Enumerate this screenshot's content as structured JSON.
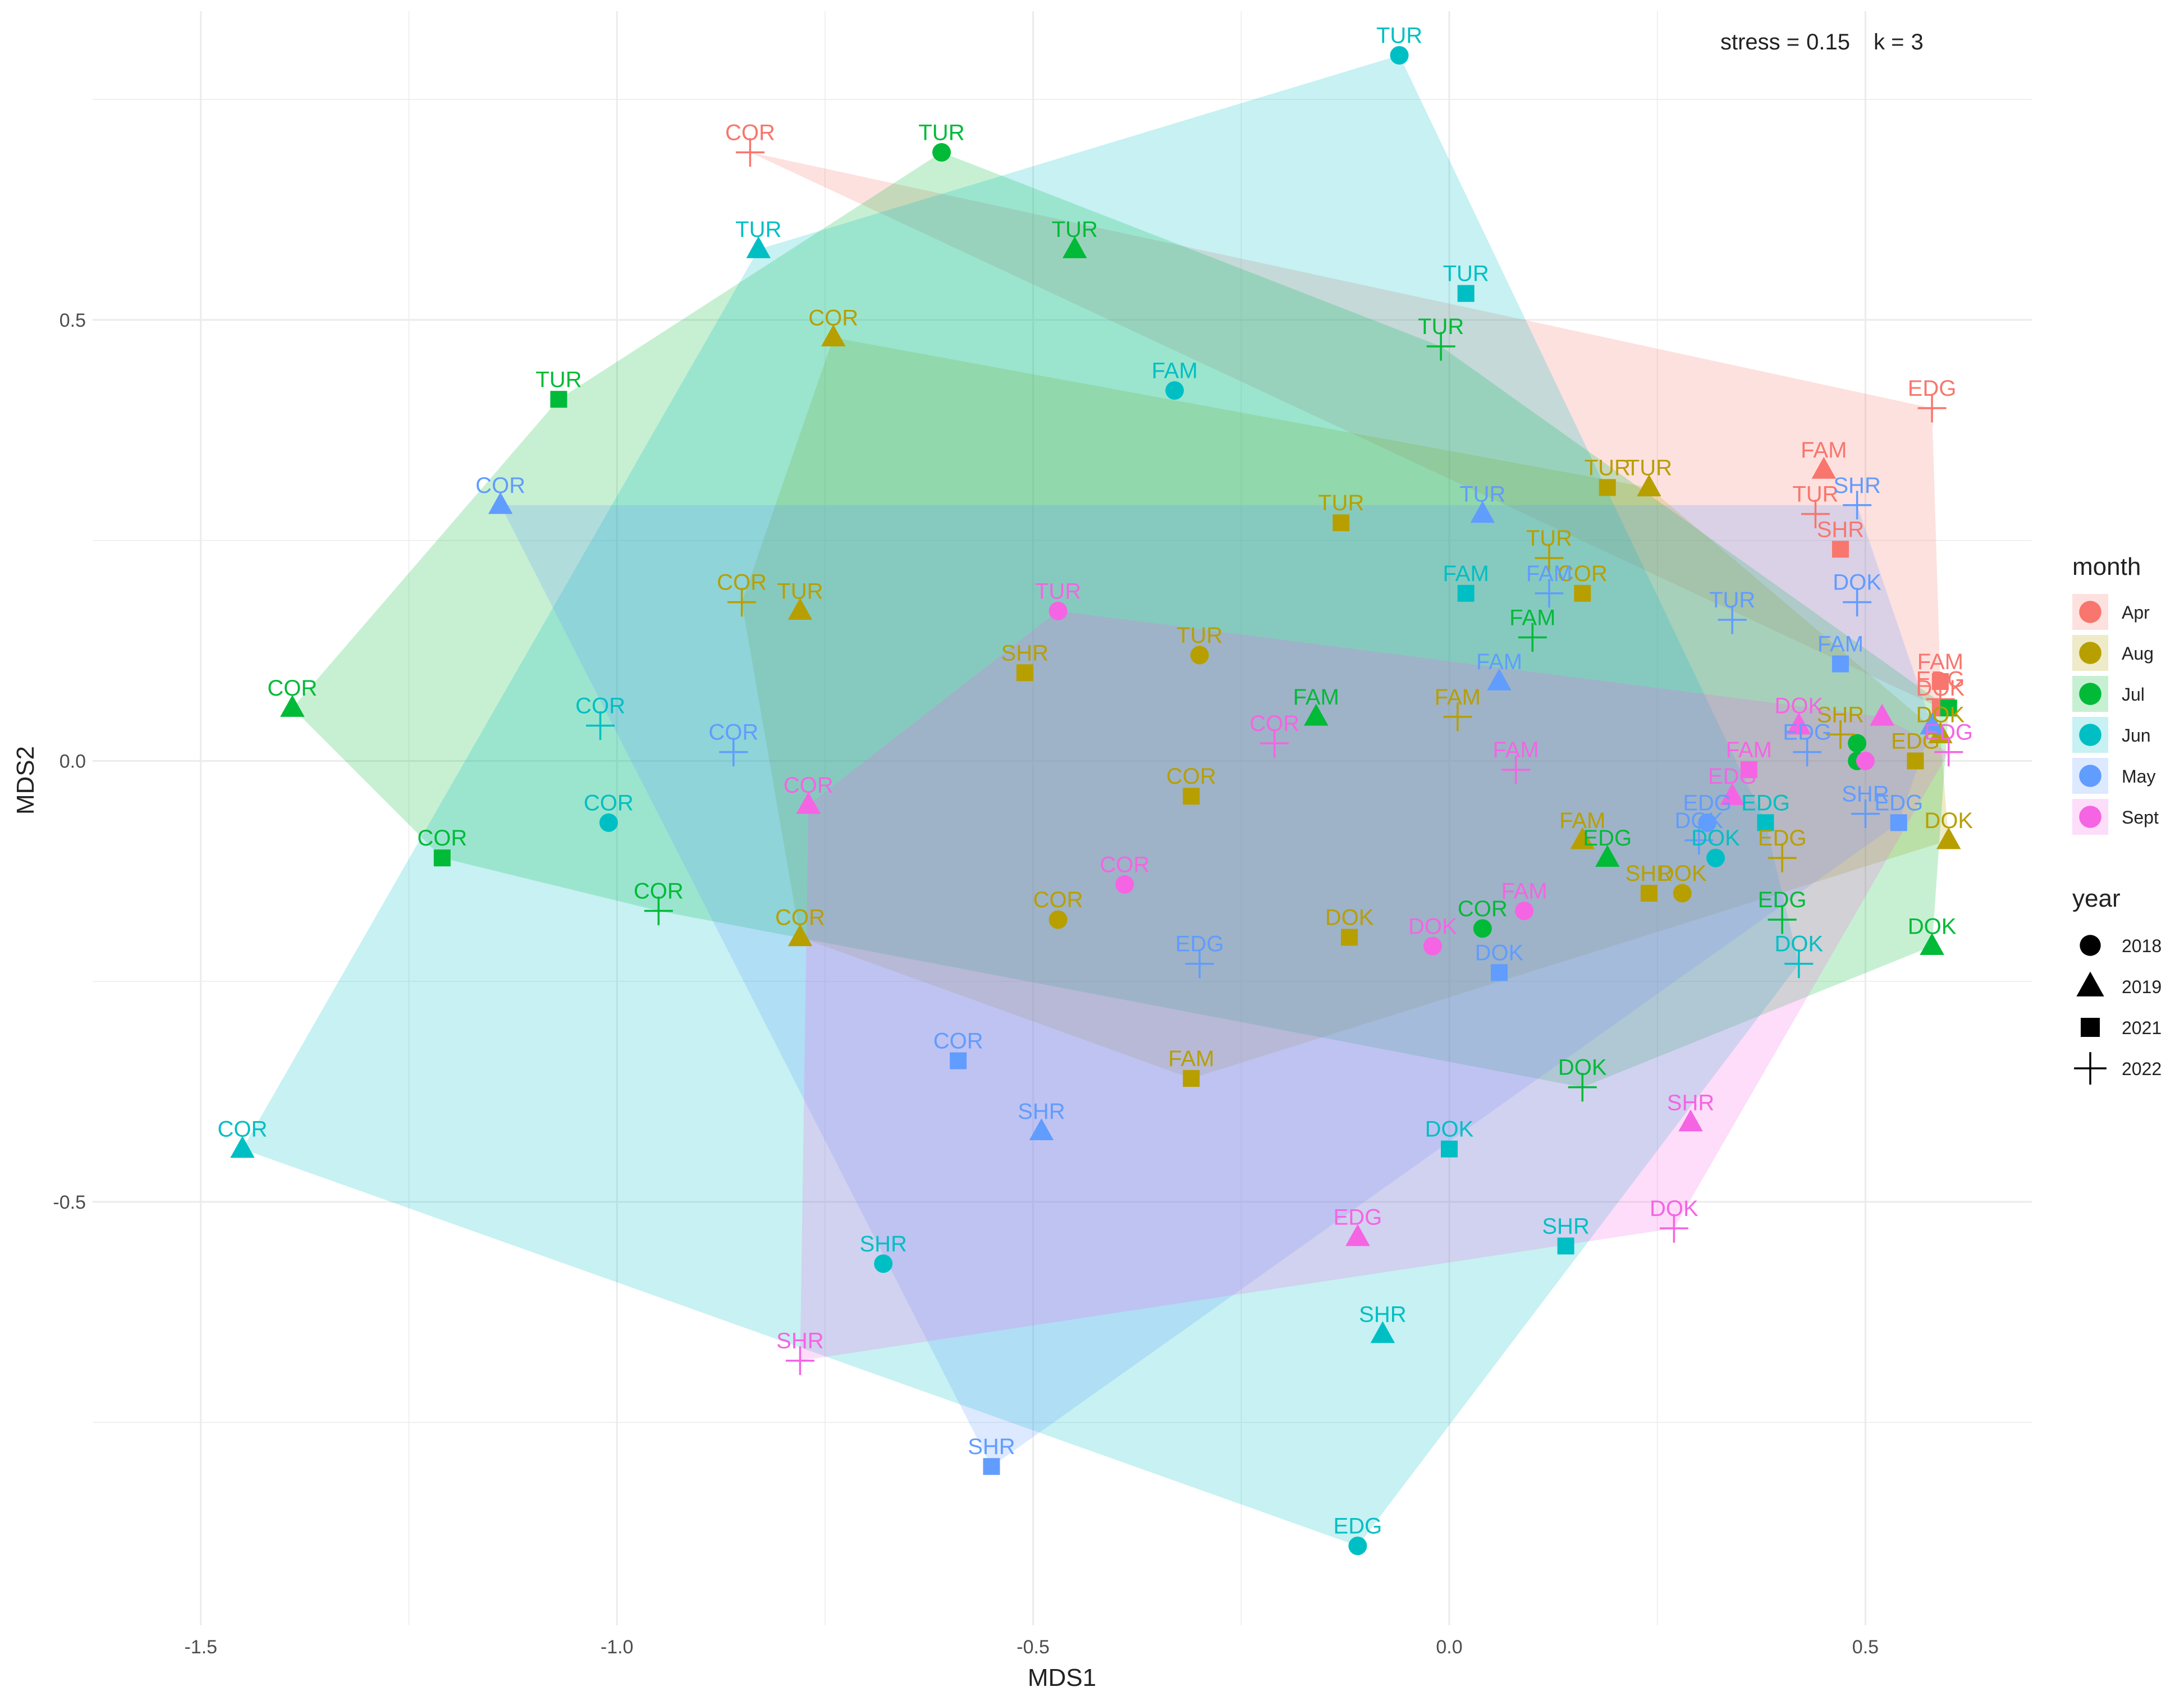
{
  "chart_data": {
    "type": "scatter",
    "annotation": {
      "stress_label": "stress =",
      "stress": "0.15",
      "k_label": "k =",
      "k": "3"
    },
    "xlabel": "MDS1",
    "ylabel": "MDS2",
    "xlim": [
      -1.63,
      0.7
    ],
    "ylim": [
      -0.98,
      0.85
    ],
    "x_ticks": [
      -1.5,
      -1.0,
      -0.5,
      0.0,
      0.5
    ],
    "x_tick_labels": [
      "-1.5",
      "-1.0",
      "-0.5",
      "0.0",
      "0.5"
    ],
    "y_ticks": [
      -0.5,
      0.0,
      0.5
    ],
    "y_tick_labels": [
      "-0.5",
      "0.0",
      "0.5"
    ],
    "grid": true,
    "legend_position": "right",
    "legend_month": {
      "title": "month",
      "entries": [
        {
          "label": "Apr",
          "color": "#F8766D"
        },
        {
          "label": "Aug",
          "color": "#B79F00"
        },
        {
          "label": "Jul",
          "color": "#00BA38"
        },
        {
          "label": "Jun",
          "color": "#00BFC4"
        },
        {
          "label": "May",
          "color": "#619CFF"
        },
        {
          "label": "Sept",
          "color": "#F564E3"
        }
      ]
    },
    "legend_year": {
      "title": "year",
      "entries": [
        {
          "label": "2018",
          "shape": "circle"
        },
        {
          "label": "2019",
          "shape": "triangle"
        },
        {
          "label": "2021",
          "shape": "square"
        },
        {
          "label": "2022",
          "shape": "plus"
        }
      ]
    },
    "points": [
      {
        "x": -0.84,
        "y": 0.69,
        "label": "COR",
        "month": "Apr",
        "year": "2022"
      },
      {
        "x": 0.45,
        "y": 0.33,
        "label": "FAM",
        "month": "Apr",
        "year": "2019"
      },
      {
        "x": 0.58,
        "y": 0.4,
        "label": "EDG",
        "month": "Apr",
        "year": "2022"
      },
      {
        "x": 0.44,
        "y": 0.28,
        "label": "TUR",
        "month": "Apr",
        "year": "2022"
      },
      {
        "x": 0.47,
        "y": 0.24,
        "label": "SHR",
        "month": "Apr",
        "year": "2021"
      },
      {
        "x": 0.59,
        "y": 0.09,
        "label": "FAM",
        "month": "Apr",
        "year": "2021"
      },
      {
        "x": 0.59,
        "y": 0.07,
        "label": "EDG",
        "month": "Apr",
        "year": "2022"
      },
      {
        "x": 0.59,
        "y": 0.06,
        "label": "DOK",
        "month": "Apr",
        "year": "2021"
      },
      {
        "x": -0.06,
        "y": 0.8,
        "label": "TUR",
        "month": "Jun",
        "year": "2018"
      },
      {
        "x": -0.83,
        "y": 0.58,
        "label": "TUR",
        "month": "Jun",
        "year": "2019"
      },
      {
        "x": 0.02,
        "y": 0.53,
        "label": "TUR",
        "month": "Jun",
        "year": "2021"
      },
      {
        "x": -0.33,
        "y": 0.42,
        "label": "FAM",
        "month": "Jun",
        "year": "2018"
      },
      {
        "x": -1.02,
        "y": 0.04,
        "label": "COR",
        "month": "Jun",
        "year": "2022"
      },
      {
        "x": -1.01,
        "y": -0.07,
        "label": "COR",
        "month": "Jun",
        "year": "2018"
      },
      {
        "x": -1.45,
        "y": -0.44,
        "label": "COR",
        "month": "Jun",
        "year": "2019"
      },
      {
        "x": -0.68,
        "y": -0.57,
        "label": "SHR",
        "month": "Jun",
        "year": "2018"
      },
      {
        "x": -0.08,
        "y": -0.65,
        "label": "SHR",
        "month": "Jun",
        "year": "2019"
      },
      {
        "x": -0.11,
        "y": -0.89,
        "label": "EDG",
        "month": "Jun",
        "year": "2018"
      },
      {
        "x": 0.14,
        "y": -0.55,
        "label": "SHR",
        "month": "Jun",
        "year": "2021"
      },
      {
        "x": -0.0,
        "y": -0.44,
        "label": "DOK",
        "month": "Jun",
        "year": "2021"
      },
      {
        "x": 0.02,
        "y": 0.19,
        "label": "FAM",
        "month": "Jun",
        "year": "2021"
      },
      {
        "x": 0.32,
        "y": -0.11,
        "label": "DOK",
        "month": "Jun",
        "year": "2018"
      },
      {
        "x": 0.42,
        "y": -0.23,
        "label": "DOK",
        "month": "Jun",
        "year": "2022"
      },
      {
        "x": 0.38,
        "y": -0.07,
        "label": "EDG",
        "month": "Jun",
        "year": "2021"
      },
      {
        "x": -0.61,
        "y": 0.69,
        "label": "TUR",
        "month": "Jul",
        "year": "2018"
      },
      {
        "x": -0.45,
        "y": 0.58,
        "label": "TUR",
        "month": "Jul",
        "year": "2019"
      },
      {
        "x": -1.07,
        "y": 0.41,
        "label": "TUR",
        "month": "Jul",
        "year": "2021"
      },
      {
        "x": -0.01,
        "y": 0.47,
        "label": "TUR",
        "month": "Jul",
        "year": "2022"
      },
      {
        "x": -1.39,
        "y": 0.06,
        "label": "COR",
        "month": "Jul",
        "year": "2019"
      },
      {
        "x": -1.21,
        "y": -0.11,
        "label": "COR",
        "month": "Jul",
        "year": "2021"
      },
      {
        "x": -0.95,
        "y": -0.17,
        "label": "COR",
        "month": "Jul",
        "year": "2022"
      },
      {
        "x": 0.58,
        "y": -0.21,
        "label": "DOK",
        "month": "Jul",
        "year": "2019"
      },
      {
        "x": 0.6,
        "y": 0.06,
        "label": "",
        "month": "Jul",
        "year": "2021"
      },
      {
        "x": 0.16,
        "y": -0.37,
        "label": "DOK",
        "month": "Jul",
        "year": "2022"
      },
      {
        "x": 0.4,
        "y": -0.18,
        "label": "EDG",
        "month": "Jul",
        "year": "2022"
      },
      {
        "x": 0.19,
        "y": -0.11,
        "label": "EDG",
        "month": "Jul",
        "year": "2019"
      },
      {
        "x": 0.04,
        "y": -0.19,
        "label": "COR",
        "month": "Jul",
        "year": "2018"
      },
      {
        "x": 0.1,
        "y": 0.14,
        "label": "FAM",
        "month": "Jul",
        "year": "2022"
      },
      {
        "x": -0.16,
        "y": 0.05,
        "label": "FAM",
        "month": "Jul",
        "year": "2019"
      },
      {
        "x": 0.49,
        "y": 0.02,
        "label": "",
        "month": "Jul",
        "year": "2018"
      },
      {
        "x": 0.49,
        "y": 0.0,
        "label": "",
        "month": "Jul",
        "year": "2018"
      },
      {
        "x": 0.59,
        "y": 0.03,
        "label": "DOK",
        "month": "Aug",
        "year": "2019"
      },
      {
        "x": 0.6,
        "y": -0.09,
        "label": "DOK",
        "month": "Aug",
        "year": "2019"
      },
      {
        "x": 0.56,
        "y": 0.0,
        "label": "EDG",
        "month": "Aug",
        "year": "2021"
      },
      {
        "x": 0.47,
        "y": 0.03,
        "label": "SHR",
        "month": "Aug",
        "year": "2022"
      },
      {
        "x": 0.24,
        "y": -0.15,
        "label": "SHR",
        "month": "Aug",
        "year": "2021"
      },
      {
        "x": 0.28,
        "y": -0.15,
        "label": "DOK",
        "month": "Aug",
        "year": "2018"
      },
      {
        "x": 0.4,
        "y": -0.11,
        "label": "EDG",
        "month": "Aug",
        "year": "2022"
      },
      {
        "x": 0.16,
        "y": -0.09,
        "label": "FAM",
        "month": "Aug",
        "year": "2019"
      },
      {
        "x": -0.12,
        "y": -0.2,
        "label": "DOK",
        "month": "Aug",
        "year": "2021"
      },
      {
        "x": -0.31,
        "y": -0.36,
        "label": "FAM",
        "month": "Aug",
        "year": "2021"
      },
      {
        "x": -0.31,
        "y": -0.04,
        "label": "COR",
        "month": "Aug",
        "year": "2021"
      },
      {
        "x": -0.3,
        "y": 0.12,
        "label": "TUR",
        "month": "Aug",
        "year": "2018"
      },
      {
        "x": -0.13,
        "y": 0.27,
        "label": "TUR",
        "month": "Aug",
        "year": "2021"
      },
      {
        "x": 0.19,
        "y": 0.31,
        "label": "TUR",
        "month": "Aug",
        "year": "2021"
      },
      {
        "x": 0.24,
        "y": 0.31,
        "label": "TUR",
        "month": "Aug",
        "year": "2019"
      },
      {
        "x": 0.16,
        "y": 0.19,
        "label": "COR",
        "month": "Aug",
        "year": "2021"
      },
      {
        "x": 0.12,
        "y": 0.23,
        "label": "TUR",
        "month": "Aug",
        "year": "2022"
      },
      {
        "x": 0.01,
        "y": 0.05,
        "label": "FAM",
        "month": "Aug",
        "year": "2022"
      },
      {
        "x": -0.74,
        "y": 0.48,
        "label": "COR",
        "month": "Aug",
        "year": "2019"
      },
      {
        "x": -0.85,
        "y": 0.18,
        "label": "COR",
        "month": "Aug",
        "year": "2022"
      },
      {
        "x": -0.78,
        "y": 0.17,
        "label": "TUR",
        "month": "Aug",
        "year": "2019"
      },
      {
        "x": -0.78,
        "y": -0.2,
        "label": "COR",
        "month": "Aug",
        "year": "2019"
      },
      {
        "x": -0.47,
        "y": -0.18,
        "label": "COR",
        "month": "Aug",
        "year": "2018"
      },
      {
        "x": -0.51,
        "y": 0.1,
        "label": "SHR",
        "month": "Aug",
        "year": "2021"
      },
      {
        "x": 0.49,
        "y": 0.29,
        "label": "SHR",
        "month": "May",
        "year": "2022"
      },
      {
        "x": 0.49,
        "y": 0.18,
        "label": "DOK",
        "month": "May",
        "year": "2022"
      },
      {
        "x": 0.47,
        "y": 0.11,
        "label": "FAM",
        "month": "May",
        "year": "2021"
      },
      {
        "x": 0.34,
        "y": 0.16,
        "label": "TUR",
        "month": "May",
        "year": "2022"
      },
      {
        "x": 0.04,
        "y": 0.28,
        "label": "TUR",
        "month": "May",
        "year": "2019"
      },
      {
        "x": 0.12,
        "y": 0.19,
        "label": "FAM",
        "month": "May",
        "year": "2022"
      },
      {
        "x": 0.06,
        "y": 0.09,
        "label": "FAM",
        "month": "May",
        "year": "2019"
      },
      {
        "x": 0.43,
        "y": 0.01,
        "label": "EDG",
        "month": "May",
        "year": "2022"
      },
      {
        "x": 0.54,
        "y": -0.07,
        "label": "EDG",
        "month": "May",
        "year": "2021"
      },
      {
        "x": 0.5,
        "y": -0.06,
        "label": "SHR",
        "month": "May",
        "year": "2022"
      },
      {
        "x": 0.58,
        "y": 0.04,
        "label": "",
        "month": "May",
        "year": "2019"
      },
      {
        "x": 0.31,
        "y": -0.07,
        "label": "EDG",
        "month": "May",
        "year": "2018"
      },
      {
        "x": 0.3,
        "y": -0.09,
        "label": "DOK",
        "month": "May",
        "year": "2022"
      },
      {
        "x": 0.06,
        "y": -0.24,
        "label": "DOK",
        "month": "May",
        "year": "2021"
      },
      {
        "x": -0.3,
        "y": -0.23,
        "label": "EDG",
        "month": "May",
        "year": "2022"
      },
      {
        "x": -0.59,
        "y": -0.34,
        "label": "COR",
        "month": "May",
        "year": "2021"
      },
      {
        "x": -0.49,
        "y": -0.42,
        "label": "SHR",
        "month": "May",
        "year": "2019"
      },
      {
        "x": -0.55,
        "y": -0.8,
        "label": "SHR",
        "month": "May",
        "year": "2021"
      },
      {
        "x": -1.14,
        "y": 0.29,
        "label": "COR",
        "month": "May",
        "year": "2019"
      },
      {
        "x": -0.86,
        "y": 0.01,
        "label": "COR",
        "month": "May",
        "year": "2022"
      },
      {
        "x": -0.47,
        "y": 0.17,
        "label": "TUR",
        "month": "Sept",
        "year": "2018"
      },
      {
        "x": -0.21,
        "y": 0.02,
        "label": "COR",
        "month": "Sept",
        "year": "2022"
      },
      {
        "x": 0.08,
        "y": -0.01,
        "label": "FAM",
        "month": "Sept",
        "year": "2022"
      },
      {
        "x": -0.39,
        "y": -0.14,
        "label": "COR",
        "month": "Sept",
        "year": "2018"
      },
      {
        "x": -0.77,
        "y": -0.05,
        "label": "COR",
        "month": "Sept",
        "year": "2019"
      },
      {
        "x": 0.09,
        "y": -0.17,
        "label": "FAM",
        "month": "Sept",
        "year": "2018"
      },
      {
        "x": -0.02,
        "y": -0.21,
        "label": "DOK",
        "month": "Sept",
        "year": "2018"
      },
      {
        "x": 0.36,
        "y": -0.01,
        "label": "FAM",
        "month": "Sept",
        "year": "2021"
      },
      {
        "x": 0.34,
        "y": -0.04,
        "label": "EDG",
        "month": "Sept",
        "year": "2019"
      },
      {
        "x": 0.42,
        "y": 0.04,
        "label": "DOK",
        "month": "Sept",
        "year": "2019"
      },
      {
        "x": 0.52,
        "y": 0.05,
        "label": "",
        "month": "Sept",
        "year": "2019"
      },
      {
        "x": 0.5,
        "y": 0.0,
        "label": "",
        "month": "Sept",
        "year": "2018"
      },
      {
        "x": 0.6,
        "y": 0.01,
        "label": "EDG",
        "month": "Sept",
        "year": "2022"
      },
      {
        "x": 0.29,
        "y": -0.41,
        "label": "SHR",
        "month": "Sept",
        "year": "2019"
      },
      {
        "x": 0.27,
        "y": -0.53,
        "label": "DOK",
        "month": "Sept",
        "year": "2022"
      },
      {
        "x": -0.11,
        "y": -0.54,
        "label": "EDG",
        "month": "Sept",
        "year": "2019"
      },
      {
        "x": -0.78,
        "y": -0.68,
        "label": "SHR",
        "month": "Sept",
        "year": "2022"
      }
    ]
  }
}
